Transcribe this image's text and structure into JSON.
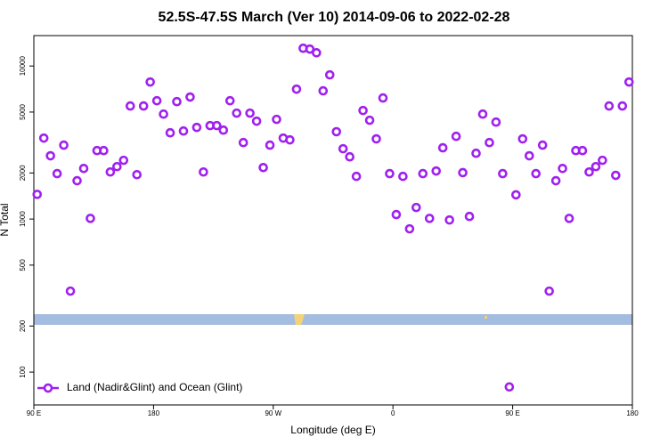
{
  "chart_data": {
    "type": "scatter",
    "title": "52.5S-47.5S March (Ver 10)   2014-09-06 to 2022-02-28",
    "x_label": "Longitude (deg E)",
    "y_label": "N Total",
    "log_y": true,
    "color": "#a020f0",
    "series": [
      {
        "name": "Land (Nadir&Glint) and Ocean (Glint)",
        "color": "#a020f0",
        "x": [
          92.5,
          97.5,
          102.5,
          107.5,
          112.5,
          117.5,
          122.5,
          127.5,
          132.5,
          137.5,
          142.5,
          147.5,
          152.5,
          157.5,
          162.5,
          167.5,
          172.5,
          177.5,
          182.5,
          187.5,
          192.5,
          197.5,
          202.5,
          207.5,
          212.5,
          217.5,
          222.5,
          227.5,
          232.5,
          237.5,
          242.5,
          247.5,
          252.5,
          257.5,
          262.5,
          267.5,
          272.5,
          277.5,
          282.5,
          287.5,
          292.5,
          297.5,
          302.5,
          307.5,
          312.5,
          317.5,
          322.5,
          327.5,
          332.5,
          337.5,
          342.5,
          347.5,
          352.5,
          357.5,
          362.5,
          367.5,
          372.5,
          377.5,
          382.5,
          387.5,
          392.5,
          397.5,
          402.5,
          407.5,
          412.5,
          417.5,
          422.5,
          427.5,
          432.5,
          437.5,
          442.5,
          447.5,
          452.5,
          457.5,
          462.5,
          467.5,
          472.5,
          477.5,
          482.5,
          487.5,
          492.5,
          497.5,
          502.5,
          507.5,
          512.5,
          517.5,
          522.5,
          527.5,
          532.5,
          537.5
        ],
        "values": [
          1450,
          3380,
          2590,
          1980,
          3040,
          338,
          1780,
          2140,
          1010,
          2800,
          2800,
          2030,
          2200,
          2420,
          5480,
          1950,
          5480,
          7860,
          5930,
          4850,
          3660,
          5850,
          3760,
          6270,
          3970,
          2030,
          4080,
          4080,
          3810,
          5930,
          4920,
          3160,
          4920,
          4360,
          2170,
          3040,
          4480,
          3380,
          3290,
          7060,
          13060,
          12900,
          12200,
          6880,
          8750,
          3720,
          2880,
          2550,
          1900,
          5120,
          4420,
          3340,
          6180,
          1980,
          1070,
          1900,
          863,
          1190,
          1980,
          1010,
          2060,
          2920,
          986,
          3470,
          2010,
          1040,
          2690,
          4850,
          3160,
          4300,
          1980,
          80,
          1440,
          3340,
          2590,
          1980,
          3040,
          338,
          1780,
          2140,
          1010,
          2800,
          2800,
          2030,
          2200,
          2420,
          5480,
          1930,
          5480,
          7860
        ]
      }
    ],
    "xlim": [
      90,
      540
    ],
    "xticks": [
      {
        "value": 90,
        "label": "90 E"
      },
      180,
      {
        "value": 270,
        "label": "90 W"
      },
      {
        "value": 360,
        "label": "0"
      },
      {
        "value": 450,
        "label": "90 E"
      },
      {
        "value": 540,
        "label": "180"
      }
    ],
    "ylim": [
      61,
      15800
    ],
    "yticks": [
      100,
      200,
      500,
      1000,
      2000,
      5000,
      10000
    ],
    "legend": "bottom-left"
  }
}
